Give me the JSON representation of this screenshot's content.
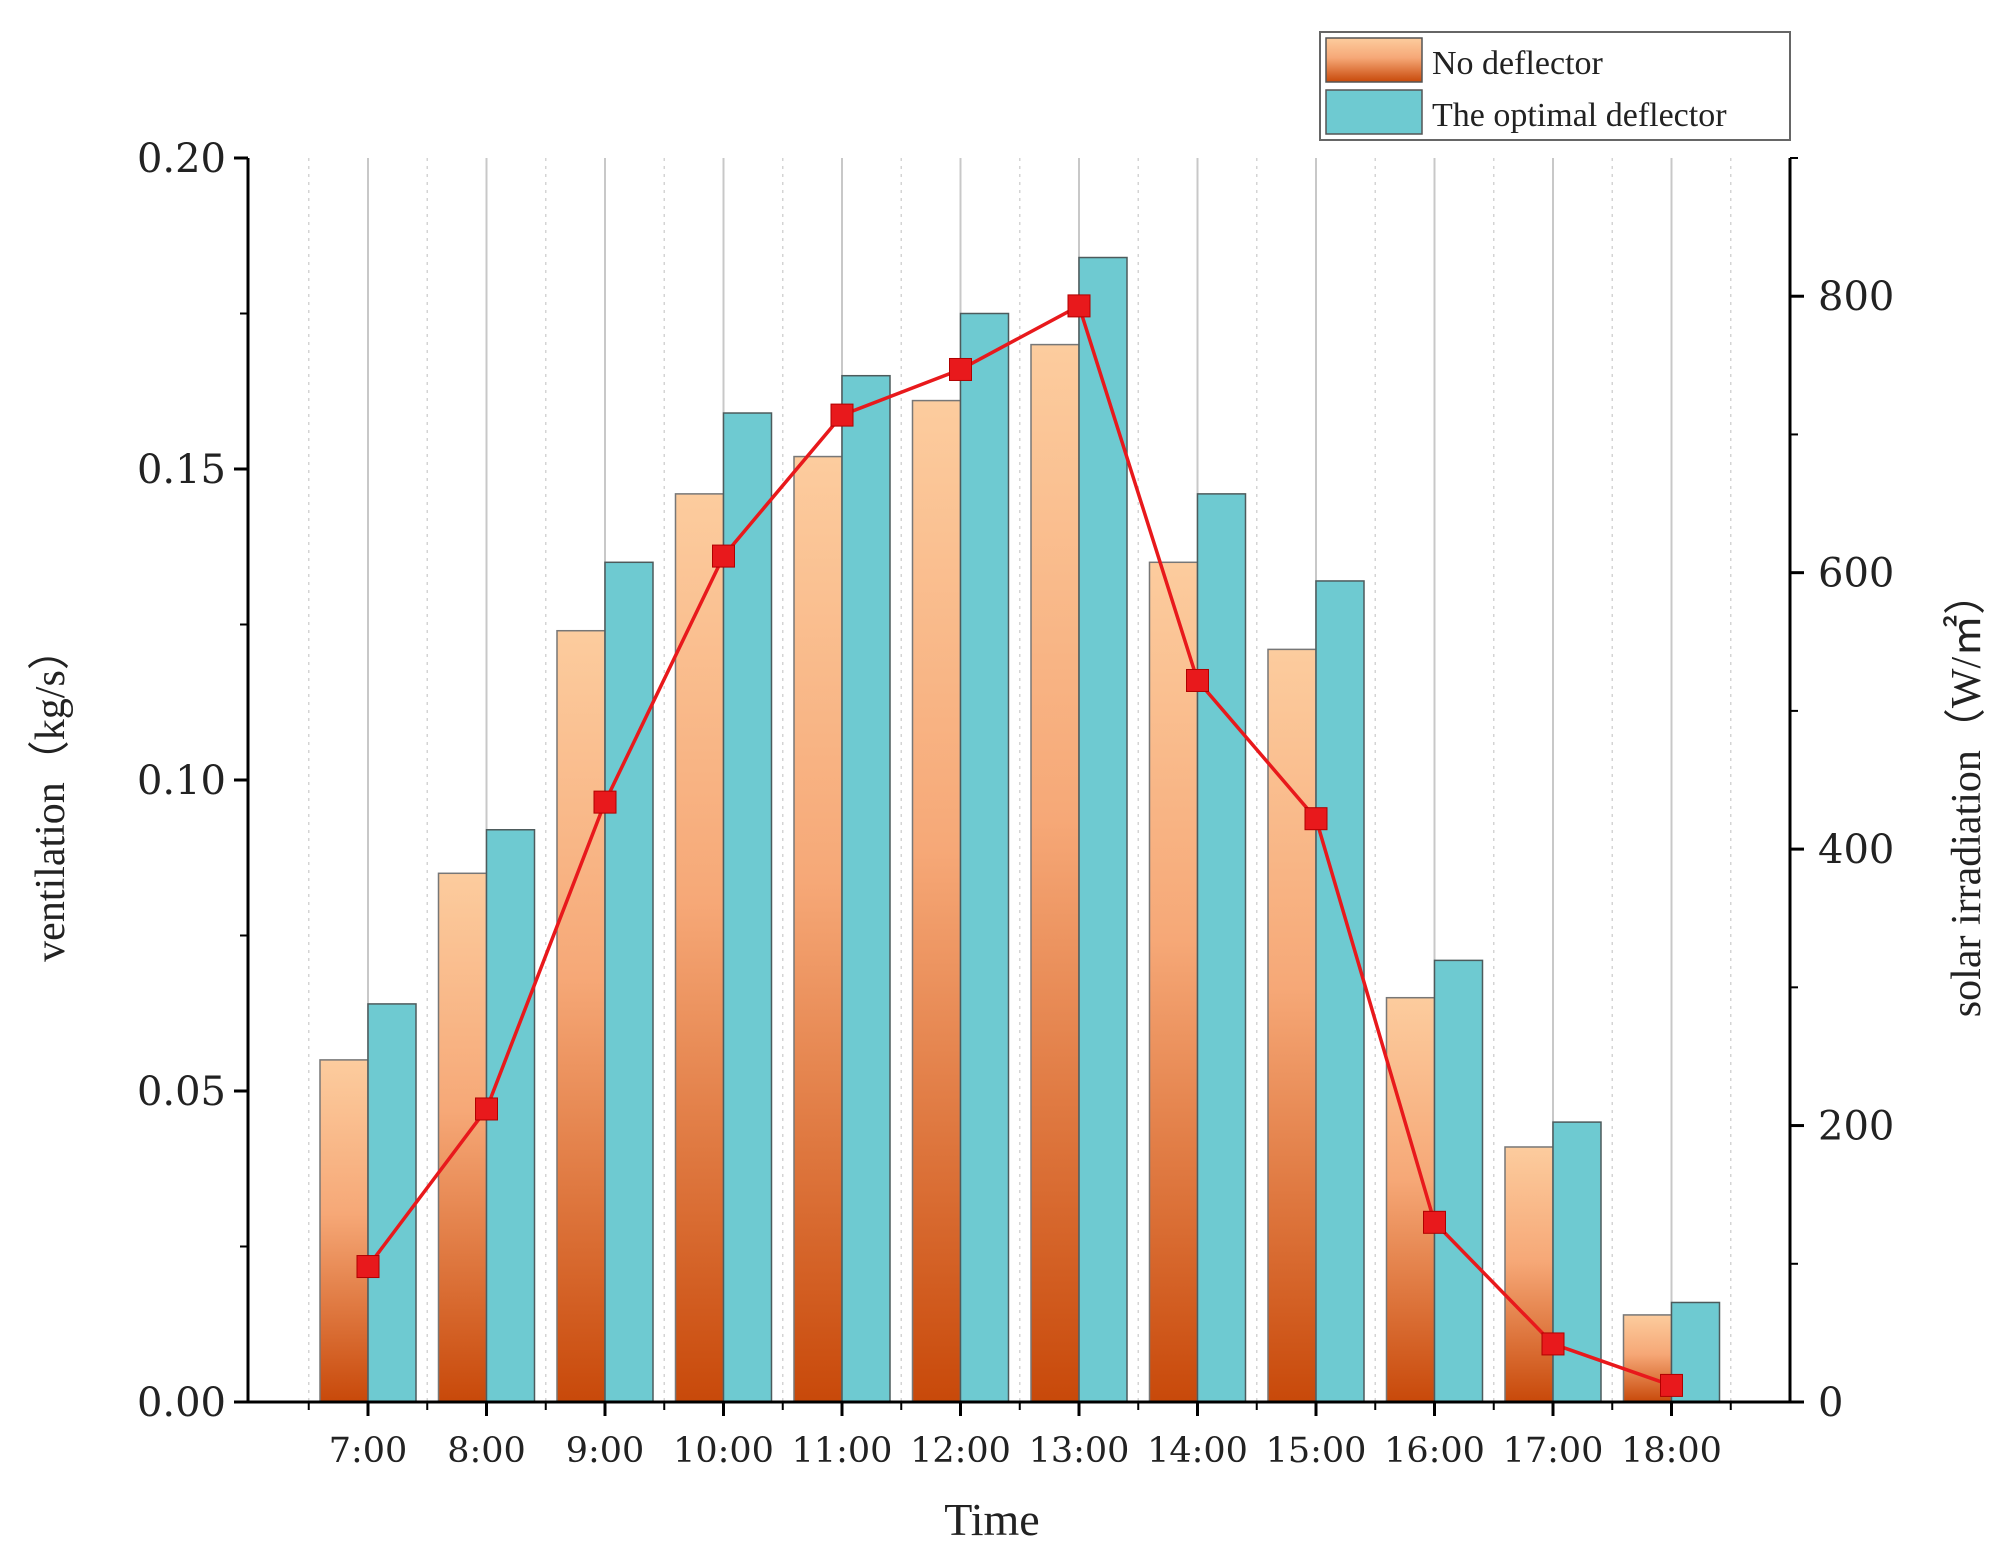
{
  "chart_data": {
    "type": "bar",
    "title": "",
    "xlabel": "Time",
    "ylabel": "ventilation（kg/s）",
    "y2label": "solar irradiation（W/㎡）",
    "categories": [
      "7:00",
      "8:00",
      "9:00",
      "10:00",
      "11:00",
      "12:00",
      "13:00",
      "14:00",
      "15:00",
      "16:00",
      "17:00",
      "18:00"
    ],
    "ylim": [
      0,
      0.2
    ],
    "y2lim": [
      0,
      900
    ],
    "yticks": [
      "0.00",
      "0.05",
      "0.10",
      "0.15",
      "0.20"
    ],
    "y2ticks": [
      "0",
      "200",
      "400",
      "600",
      "800"
    ],
    "series": [
      {
        "name": "No deflector",
        "type": "bar",
        "axis": "left",
        "values": [
          0.055,
          0.085,
          0.124,
          0.146,
          0.152,
          0.161,
          0.17,
          0.135,
          0.121,
          0.065,
          0.041,
          0.014
        ],
        "color_top": "#fccc9e",
        "color_bottom": "#c8490a"
      },
      {
        "name": "The optimal deflector",
        "type": "bar",
        "axis": "left",
        "values": [
          0.064,
          0.092,
          0.135,
          0.159,
          0.165,
          0.175,
          0.184,
          0.146,
          0.132,
          0.071,
          0.045,
          0.016
        ],
        "color": "#6ecad1"
      },
      {
        "name": "solar irradiation",
        "type": "line",
        "axis": "right",
        "values": [
          98,
          212,
          434,
          612,
          714,
          747,
          793,
          522,
          422,
          130,
          42,
          12
        ],
        "color": "#e8191c"
      }
    ],
    "legend": {
      "position": "top-right",
      "entries": [
        "No deflector",
        "The optimal deflector"
      ]
    }
  }
}
